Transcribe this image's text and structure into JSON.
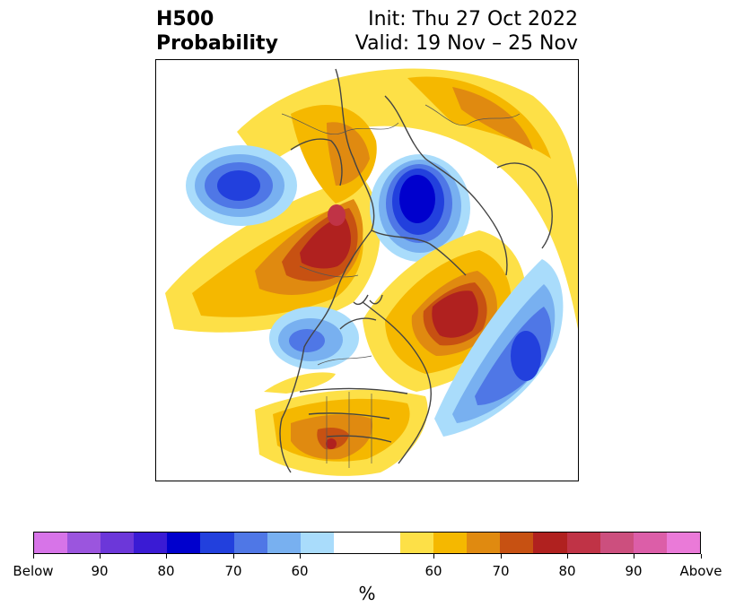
{
  "title": {
    "left_line1": "H500",
    "left_line2": "Probability",
    "right_line1": "Init: Thu 27 Oct 2022",
    "right_line2": "Valid: 19 Nov – 25 Nov"
  },
  "colorbar": {
    "colors": [
      "#d774e8",
      "#9b55de",
      "#6c37d9",
      "#3a1bd4",
      "#0000cd",
      "#2240dd",
      "#4f77e6",
      "#78b0f0",
      "#a9dcfb",
      "#ffffff",
      "#ffffff",
      "#fde047",
      "#f5b800",
      "#e08a10",
      "#c75112",
      "#b0211f",
      "#c03346",
      "#cc4f7e",
      "#dc5ea8",
      "#ea7ad8"
    ],
    "tick_labels": [
      "Below",
      "90",
      "80",
      "70",
      "60",
      "60",
      "70",
      "80",
      "90",
      "Above"
    ],
    "unit": "%"
  },
  "map": {
    "features": [
      "below-normal-ridge-alaska-bering",
      "below-normal-trough-siberia-pole",
      "below-normal-central-canada",
      "below-normal-north-atlantic",
      "above-normal-east-siberia",
      "above-normal-greenland-labrador",
      "above-normal-southwest-us"
    ]
  }
}
